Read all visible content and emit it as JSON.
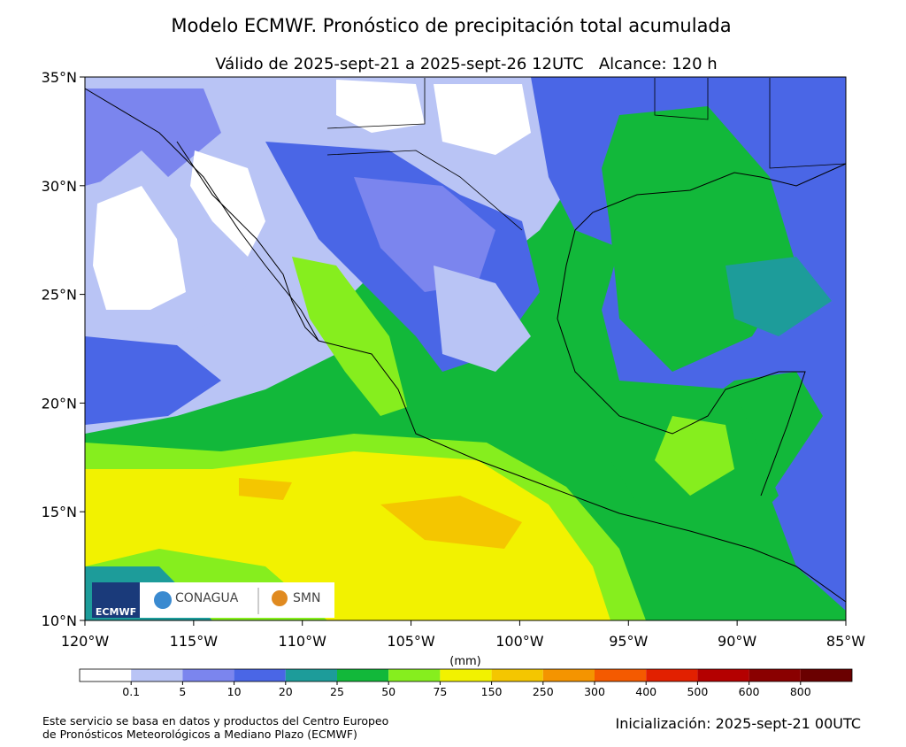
{
  "header": {
    "title": "Modelo ECMWF. Pronóstico de precipitación total acumulada",
    "subtitle": "Válido de 2025-sept-21 a 2025-sept-26 12UTC   Alcance: 120 h"
  },
  "map": {
    "lat_labels": [
      "35°N",
      "30°N",
      "25°N",
      "20°N",
      "15°N",
      "10°N"
    ],
    "lon_labels": [
      "120°W",
      "115°W",
      "110°W",
      "105°W",
      "100°W",
      "95°W",
      "90°W",
      "85°W"
    ],
    "logos": {
      "ecmwf": "ECMWF",
      "conagua": "CONAGUA",
      "smn": "SMN"
    }
  },
  "colorbar": {
    "unit": "(mm)",
    "labels": [
      "0.1",
      "5",
      "10",
      "20",
      "25",
      "50",
      "75",
      "150",
      "250",
      "300",
      "400",
      "500",
      "600",
      "800"
    ],
    "colors": [
      "#ffffff",
      "#b9c4f5",
      "#7b85ee",
      "#4a66e6",
      "#1d9c9a",
      "#12b83a",
      "#86ee1e",
      "#f2f200",
      "#f4c600",
      "#f49400",
      "#f45a00",
      "#e22000",
      "#b40000",
      "#8a0000",
      "#6a0000"
    ]
  },
  "footer": {
    "source_line1": "Este servicio se basa en datos y productos del Centro Europeo",
    "source_line2": "de Pronósticos Meteorológicos a Mediano Plazo (ECMWF)",
    "init": "Inicialización: 2025-sept-21 00UTC"
  }
}
